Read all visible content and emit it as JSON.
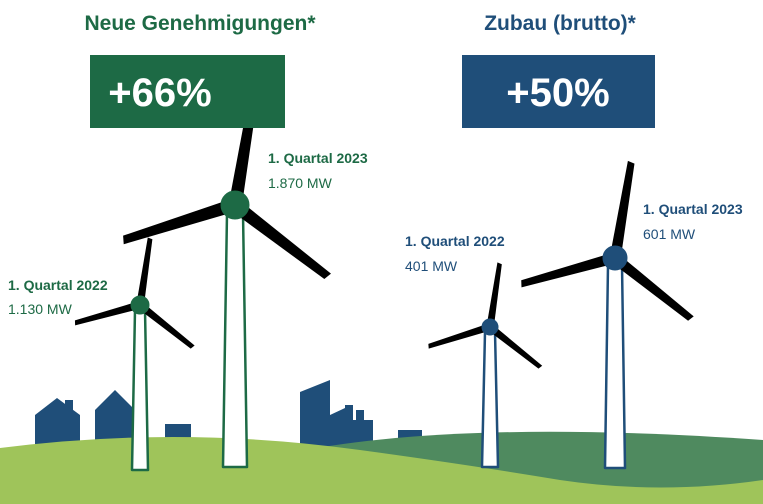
{
  "panels": [
    {
      "title": "Neue Genehmigungen*",
      "change": "+66%",
      "items": [
        {
          "label": "1. Quartal 2022",
          "value": "1.130 MW"
        },
        {
          "label": "1. Quartal 2023",
          "value": "1.870 MW"
        }
      ]
    },
    {
      "title": "Zubau (brutto)*",
      "change": "+50%",
      "items": [
        {
          "label": "1. Quartal 2022",
          "value": "401 MW"
        },
        {
          "label": "1. Quartal 2023",
          "value": "601 MW"
        }
      ]
    }
  ]
}
